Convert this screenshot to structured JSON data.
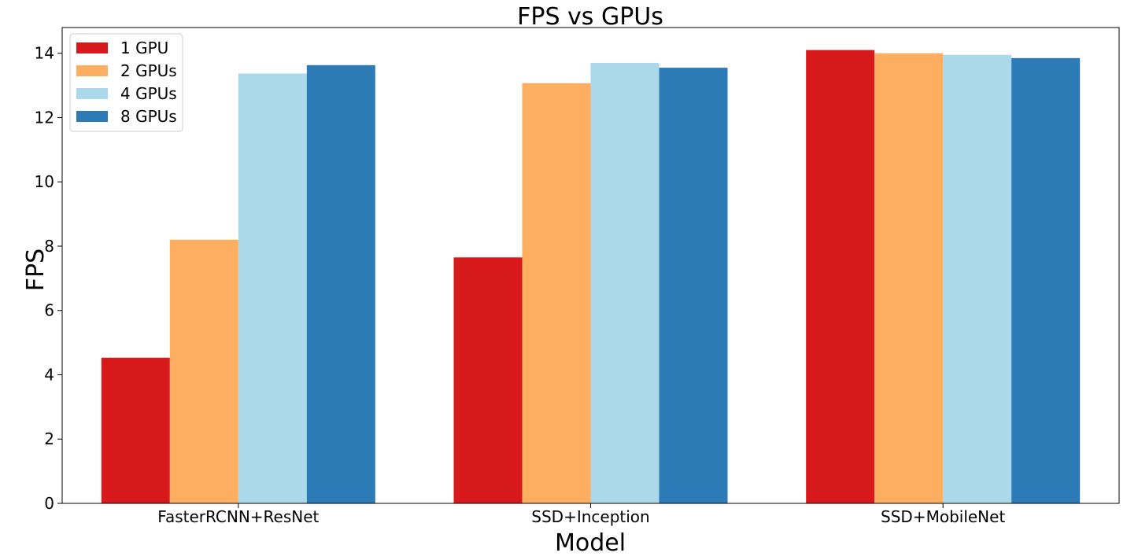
{
  "chart_data": {
    "type": "bar",
    "title": "FPS vs GPUs",
    "xlabel": "Model",
    "ylabel": "FPS",
    "categories": [
      "FasterRCNN+ResNet",
      "SSD+Inception",
      "SSD+MobileNet"
    ],
    "series": [
      {
        "name": "1 GPU",
        "color": "#d7191c",
        "values": [
          4.53,
          7.65,
          14.1
        ]
      },
      {
        "name": "2 GPUs",
        "color": "#fdae61",
        "values": [
          8.2,
          13.07,
          14.0
        ]
      },
      {
        "name": "4 GPUs",
        "color": "#abd9e9",
        "values": [
          13.37,
          13.7,
          13.95
        ]
      },
      {
        "name": "8 GPUs",
        "color": "#2c7bb6",
        "values": [
          13.63,
          13.55,
          13.85
        ]
      }
    ],
    "ylim": [
      0,
      14.8
    ],
    "yticks": [
      0,
      2,
      4,
      6,
      8,
      10,
      12,
      14
    ],
    "grid": false,
    "legend_position": "top-left"
  }
}
